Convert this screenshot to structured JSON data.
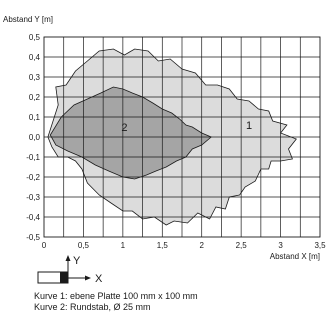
{
  "chart_data": {
    "type": "area",
    "ylabel": "Abstand Y [m]",
    "xlabel": "Abstand X [m]",
    "xlim": [
      0,
      3.5
    ],
    "ylim": [
      -0.5,
      0.5
    ],
    "x_ticks": [
      0,
      0.5,
      1,
      1.5,
      2,
      2.5,
      3,
      3.5
    ],
    "x_tick_labels": [
      "0",
      "0,5",
      "1",
      "1,5",
      "2",
      "2,5",
      "3",
      "3,5"
    ],
    "y_ticks": [
      0.5,
      0.4,
      0.3,
      0.2,
      0.1,
      0.0,
      -0.1,
      -0.2,
      -0.3,
      -0.4,
      -0.5
    ],
    "y_tick_labels": [
      "0,5",
      "0,4",
      "0,3",
      "0,2",
      "0,1",
      "0,0",
      "-0,1",
      "-0,2",
      "-0,3",
      "-0,4",
      "-0,5"
    ],
    "x_grid_step": 0.25,
    "y_grid_step": 0.1,
    "grid": true,
    "series": [
      {
        "name": "1",
        "color": "#dcdcdc",
        "outline": [
          [
            0.05,
            0.0
          ],
          [
            0.18,
            0.16
          ],
          [
            0.15,
            0.25
          ],
          [
            0.28,
            0.26
          ],
          [
            0.4,
            0.33
          ],
          [
            0.55,
            0.38
          ],
          [
            0.7,
            0.43
          ],
          [
            0.88,
            0.44
          ],
          [
            1.02,
            0.41
          ],
          [
            1.15,
            0.44
          ],
          [
            1.32,
            0.43
          ],
          [
            1.45,
            0.38
          ],
          [
            1.6,
            0.39
          ],
          [
            1.75,
            0.34
          ],
          [
            1.92,
            0.32
          ],
          [
            2.05,
            0.26
          ],
          [
            2.2,
            0.26
          ],
          [
            2.35,
            0.24
          ],
          [
            2.45,
            0.19
          ],
          [
            2.6,
            0.18
          ],
          [
            2.72,
            0.14
          ],
          [
            2.85,
            0.13
          ],
          [
            2.9,
            0.08
          ],
          [
            3.08,
            0.06
          ],
          [
            3.0,
            0.02
          ],
          [
            3.2,
            -0.01
          ],
          [
            3.1,
            -0.06
          ],
          [
            3.15,
            -0.11
          ],
          [
            3.0,
            -0.12
          ],
          [
            2.88,
            -0.12
          ],
          [
            2.85,
            -0.16
          ],
          [
            2.75,
            -0.16
          ],
          [
            2.68,
            -0.22
          ],
          [
            2.55,
            -0.25
          ],
          [
            2.48,
            -0.29
          ],
          [
            2.35,
            -0.3
          ],
          [
            2.3,
            -0.36
          ],
          [
            2.18,
            -0.35
          ],
          [
            2.1,
            -0.41
          ],
          [
            1.95,
            -0.38
          ],
          [
            1.82,
            -0.43
          ],
          [
            1.65,
            -0.42
          ],
          [
            1.55,
            -0.44
          ],
          [
            1.4,
            -0.4
          ],
          [
            1.25,
            -0.41
          ],
          [
            1.12,
            -0.37
          ],
          [
            1.0,
            -0.37
          ],
          [
            0.85,
            -0.33
          ],
          [
            0.7,
            -0.29
          ],
          [
            0.55,
            -0.23
          ],
          [
            0.48,
            -0.16
          ],
          [
            0.4,
            -0.12
          ],
          [
            0.3,
            -0.1
          ],
          [
            0.18,
            -0.1
          ],
          [
            0.1,
            -0.05
          ]
        ]
      },
      {
        "name": "2",
        "color": "#a5a5a5",
        "outline": [
          [
            0.08,
            0.01
          ],
          [
            0.22,
            0.1
          ],
          [
            0.38,
            0.16
          ],
          [
            0.55,
            0.19
          ],
          [
            0.72,
            0.22
          ],
          [
            0.88,
            0.25
          ],
          [
            1.0,
            0.24
          ],
          [
            1.12,
            0.22
          ],
          [
            1.25,
            0.2
          ],
          [
            1.38,
            0.17
          ],
          [
            1.5,
            0.14
          ],
          [
            1.62,
            0.12
          ],
          [
            1.72,
            0.09
          ],
          [
            1.8,
            0.06
          ],
          [
            1.88,
            0.05
          ],
          [
            2.0,
            0.02
          ],
          [
            2.12,
            0.0
          ],
          [
            2.0,
            -0.04
          ],
          [
            1.88,
            -0.06
          ],
          [
            1.8,
            -0.1
          ],
          [
            1.68,
            -0.12
          ],
          [
            1.55,
            -0.15
          ],
          [
            1.42,
            -0.17
          ],
          [
            1.3,
            -0.19
          ],
          [
            1.15,
            -0.21
          ],
          [
            1.0,
            -0.2
          ],
          [
            0.82,
            -0.17
          ],
          [
            0.65,
            -0.14
          ],
          [
            0.48,
            -0.1
          ],
          [
            0.3,
            -0.07
          ],
          [
            0.15,
            -0.04
          ]
        ]
      }
    ],
    "annotations": [
      {
        "text": "1",
        "x": 2.6,
        "y": 0.06
      },
      {
        "text": "2",
        "x": 1.02,
        "y": 0.05
      }
    ]
  },
  "sensor_diagram": {
    "y_label": "Y",
    "x_label": "X"
  },
  "legend": {
    "line1": "Kurve 1: ebene Platte 100 mm x 100 mm",
    "line2": "Kurve 2: Rundstab, Ø 25 mm"
  }
}
